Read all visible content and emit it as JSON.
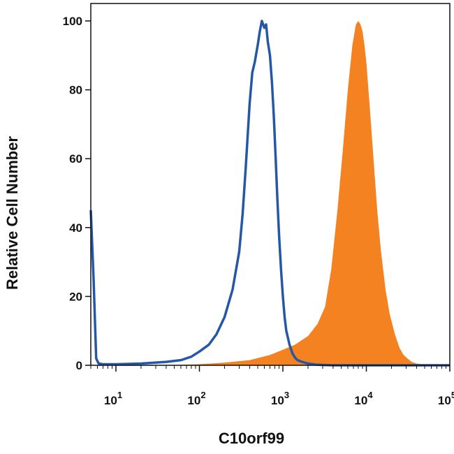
{
  "chart_data": {
    "type": "area",
    "xscale": "log",
    "xlim": [
      5,
      100000
    ],
    "ylim": [
      0,
      100
    ],
    "xlabel": "C10orf99",
    "ylabel": "Relative Cell Number",
    "grid": false,
    "x_ticks": [
      {
        "value": 10,
        "base": "10",
        "exp": "1"
      },
      {
        "value": 100,
        "base": "10",
        "exp": "2"
      },
      {
        "value": 1000,
        "base": "10",
        "exp": "3"
      },
      {
        "value": 10000,
        "base": "10",
        "exp": "4"
      },
      {
        "value": 100000,
        "base": "10",
        "exp": "5"
      }
    ],
    "y_ticks": [
      0,
      20,
      40,
      60,
      80,
      100
    ],
    "series": [
      {
        "style": "filled",
        "color": "#F58220",
        "x": [
          5,
          40,
          100,
          200,
          400,
          700,
          1000,
          1400,
          2000,
          2600,
          3200,
          3800,
          4500,
          5200,
          6000,
          6800,
          7500,
          8000,
          8500,
          9000,
          9500,
          10000,
          11000,
          12000,
          13500,
          15000,
          17000,
          19000,
          22000,
          25000,
          28000,
          31000,
          35000,
          40000,
          50000,
          70000,
          100000
        ],
        "y": [
          0,
          0,
          0.3,
          0.8,
          1.5,
          3,
          4.5,
          6,
          8.5,
          12,
          17,
          28,
          45,
          62,
          80,
          93,
          99,
          100,
          99,
          97,
          93,
          88,
          75,
          62,
          45,
          33,
          22,
          15,
          9,
          5,
          3,
          2,
          1,
          0.5,
          0.2,
          0,
          0
        ]
      },
      {
        "style": "line",
        "color": "#2557A7",
        "x": [
          5,
          5.4,
          5.8,
          6.2,
          7,
          10,
          20,
          40,
          60,
          80,
          100,
          130,
          160,
          200,
          250,
          300,
          330,
          360,
          400,
          430,
          460,
          500,
          530,
          560,
          600,
          630,
          660,
          700,
          740,
          780,
          820,
          860,
          900,
          950,
          1000,
          1050,
          1100,
          1200,
          1300,
          1400,
          1500,
          1700,
          2000,
          2500,
          3000,
          4000,
          100000
        ],
        "y": [
          45,
          25,
          2,
          0.5,
          0.3,
          0.3,
          0.5,
          1,
          1.5,
          2.5,
          4,
          6,
          9,
          14,
          22,
          33,
          44,
          58,
          76,
          85,
          88,
          93,
          97,
          100,
          98,
          99,
          94,
          90,
          82,
          72,
          60,
          48,
          38,
          28,
          20,
          14,
          10,
          6,
          3.5,
          2.2,
          1.5,
          1,
          0.5,
          0.2,
          0.1,
          0,
          0
        ]
      }
    ]
  }
}
